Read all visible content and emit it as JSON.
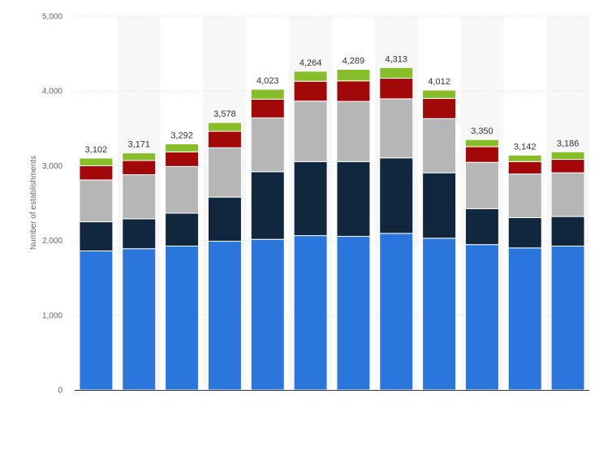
{
  "chart_data": {
    "type": "bar",
    "stacked": true,
    "ylabel": "Number of establishments",
    "ylim": [
      0,
      5000
    ],
    "yticks": [
      "0",
      "1,000",
      "2,000",
      "3,000",
      "4,000",
      "5,000"
    ],
    "categories": [
      "",
      "",
      "",
      "",
      "",
      "",
      "",
      "",
      "",
      "",
      "",
      ""
    ],
    "series": [
      {
        "color": "#2a76dd",
        "values": [
          1860,
          1890,
          1925,
          1990,
          2015,
          2065,
          2055,
          2095,
          2030,
          1945,
          1900,
          1925
        ]
      },
      {
        "color": "#10273d",
        "values": [
          390,
          400,
          440,
          590,
          905,
          990,
          1000,
          1010,
          875,
          480,
          405,
          395
        ]
      },
      {
        "color": "#b6b6b6",
        "values": [
          560,
          590,
          625,
          660,
          720,
          810,
          805,
          790,
          725,
          620,
          585,
          585
        ]
      },
      {
        "color": "#a30808",
        "values": [
          190,
          190,
          195,
          220,
          250,
          265,
          275,
          275,
          270,
          210,
          165,
          180
        ]
      },
      {
        "color": "#88bd2a",
        "values": [
          102,
          101,
          107,
          118,
          133,
          134,
          154,
          143,
          112,
          95,
          87,
          101
        ]
      }
    ],
    "totals": [
      "3,102",
      "3,171",
      "3,292",
      "3,578",
      "4,023",
      "4,264",
      "4,289",
      "4,313",
      "4,012",
      "3,350",
      "3,142",
      "3,186"
    ],
    "grid": true,
    "legend": "none"
  }
}
